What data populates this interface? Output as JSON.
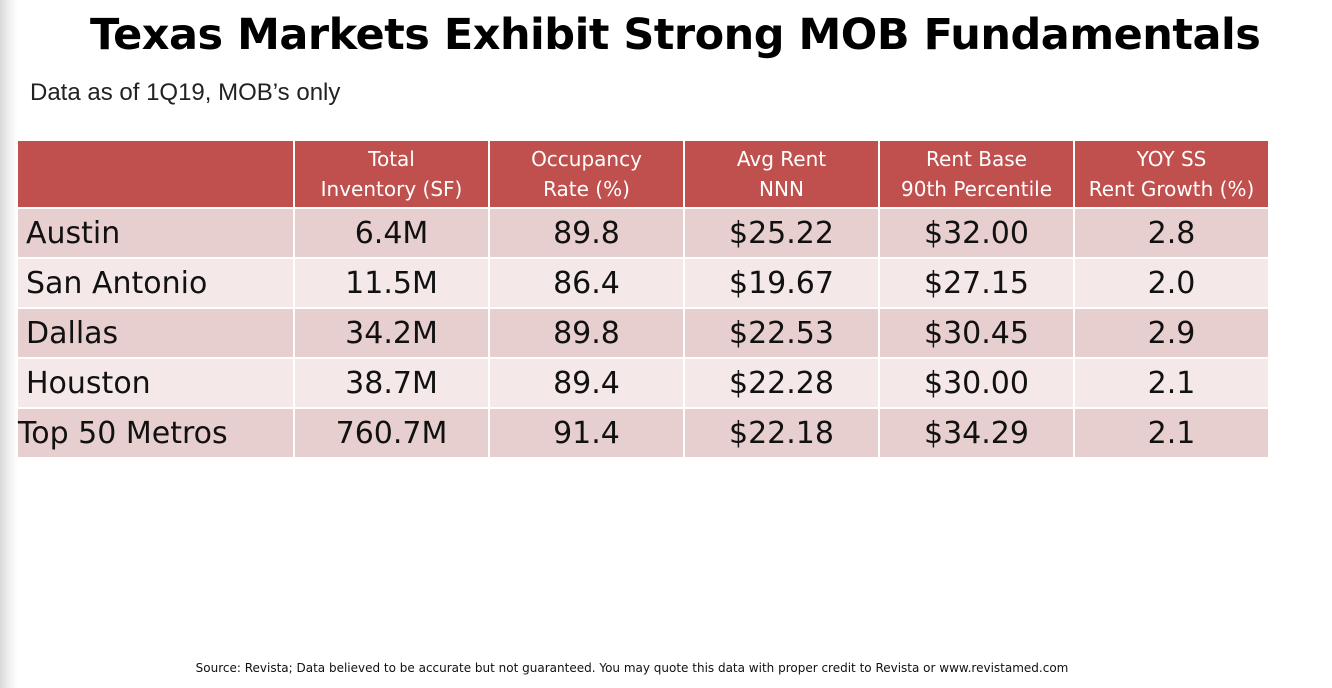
{
  "slide": {
    "title": "Texas Markets Exhibit Strong MOB Fundamentals",
    "subtitle": "Data as of 1Q19, MOB’s only",
    "source": "Source:  Revista; Data believed to be accurate but not guaranteed.  You may quote this data with proper credit to Revista or www.revistamed.com"
  },
  "table": {
    "header_color": "#c0504d",
    "row_colors": [
      "#e8cfcf",
      "#f4e8e8"
    ],
    "columns": [
      {
        "line1": "",
        "line2": ""
      },
      {
        "line1": "Total",
        "line2": "Inventory (SF)"
      },
      {
        "line1": "Occupancy",
        "line2": "Rate (%)"
      },
      {
        "line1": "Avg Rent",
        "line2": "NNN"
      },
      {
        "line1": "Rent Base",
        "line2": "90th Percentile"
      },
      {
        "line1": "YOY SS",
        "line2": "Rent Growth (%)"
      }
    ],
    "rows": [
      {
        "metro": "Austin",
        "inventory": "6.4M",
        "occupancy": "89.8",
        "avg_rent": "$25.22",
        "rent_90th": "$32.00",
        "rent_growth": "2.8"
      },
      {
        "metro": "San Antonio",
        "inventory": "11.5M",
        "occupancy": "86.4",
        "avg_rent": "$19.67",
        "rent_90th": "$27.15",
        "rent_growth": "2.0"
      },
      {
        "metro": "Dallas",
        "inventory": "34.2M",
        "occupancy": "89.8",
        "avg_rent": "$22.53",
        "rent_90th": "$30.45",
        "rent_growth": "2.9"
      },
      {
        "metro": "Houston",
        "inventory": "38.7M",
        "occupancy": "89.4",
        "avg_rent": "$22.28",
        "rent_90th": "$30.00",
        "rent_growth": "2.1"
      },
      {
        "metro": "Top 50 Metros",
        "inventory": "760.7M",
        "occupancy": "91.4",
        "avg_rent": "$22.18",
        "rent_90th": "$34.29",
        "rent_growth": "2.1"
      }
    ]
  }
}
